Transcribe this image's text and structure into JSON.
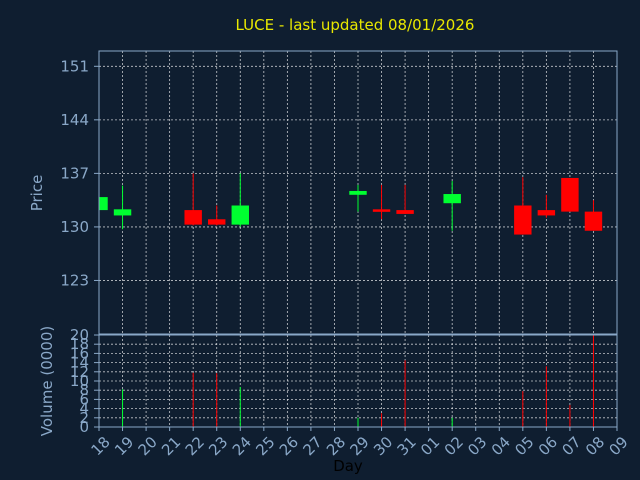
{
  "chart_data": {
    "type": "candlestick",
    "title": "LUCE - last updated 08/01/2026",
    "x": [
      "18",
      "19",
      "20",
      "21",
      "22",
      "23",
      "24",
      "25",
      "26",
      "27",
      "28",
      "29",
      "30",
      "31",
      "01",
      "02",
      "03",
      "04",
      "05",
      "06",
      "07",
      "08",
      "09"
    ],
    "xlabel": "Day",
    "price": {
      "ylabel": "Price",
      "ylim": [
        116,
        153
      ],
      "yticks": [
        123,
        130,
        137,
        144,
        151
      ],
      "candles": [
        {
          "day": "18",
          "open": 132.2,
          "high": 133.9,
          "low": 132.2,
          "close": 133.9
        },
        {
          "day": "19",
          "open": 131.5,
          "high": 135.4,
          "low": 129.7,
          "close": 132.3
        },
        {
          "day": "22",
          "open": 132.2,
          "high": 137.0,
          "low": 130.2,
          "close": 130.3
        },
        {
          "day": "23",
          "open": 131.0,
          "high": 132.8,
          "low": 130.2,
          "close": 130.3
        },
        {
          "day": "24",
          "open": 130.3,
          "high": 137.0,
          "low": 130.0,
          "close": 132.8
        },
        {
          "day": "29",
          "open": 134.2,
          "high": 135.5,
          "low": 132.0,
          "close": 134.7
        },
        {
          "day": "30",
          "open": 132.3,
          "high": 135.5,
          "low": 131.0,
          "close": 132.0
        },
        {
          "day": "31",
          "open": 132.2,
          "high": 135.5,
          "low": 131.7,
          "close": 131.7
        },
        {
          "day": "02",
          "open": 133.1,
          "high": 136.0,
          "low": 129.5,
          "close": 134.3
        },
        {
          "day": "05",
          "open": 132.8,
          "high": 136.5,
          "low": 129.0,
          "close": 129.0
        },
        {
          "day": "06",
          "open": 132.2,
          "high": 134.2,
          "low": 131.2,
          "close": 131.5
        },
        {
          "day": "07",
          "open": 136.4,
          "high": 136.4,
          "low": 132.0,
          "close": 132.0
        },
        {
          "day": "08",
          "open": 132.0,
          "high": 133.5,
          "low": 129.5,
          "close": 129.5
        }
      ]
    },
    "volume": {
      "ylabel": "Volume (0000)",
      "ylim": [
        0,
        20
      ],
      "yticks": [
        0,
        2,
        4,
        6,
        8,
        10,
        12,
        14,
        16,
        18,
        20
      ],
      "bars": [
        {
          "day": "19",
          "value": 8.2
        },
        {
          "day": "22",
          "value": 11.8
        },
        {
          "day": "23",
          "value": 11.7
        },
        {
          "day": "24",
          "value": 8.7
        },
        {
          "day": "29",
          "value": 2.0
        },
        {
          "day": "30",
          "value": 3.0
        },
        {
          "day": "31",
          "value": 14.5
        },
        {
          "day": "02",
          "value": 2.0
        },
        {
          "day": "05",
          "value": 7.8
        },
        {
          "day": "06",
          "value": 13.2
        },
        {
          "day": "07",
          "value": 4.8
        },
        {
          "day": "08",
          "value": 20.0
        }
      ]
    },
    "grid": true,
    "colors": {
      "up": "#00ff30",
      "down": "#ff0000",
      "background": "#0f1e30",
      "title": "#e8e800",
      "axis": "#8aa8c8"
    }
  }
}
